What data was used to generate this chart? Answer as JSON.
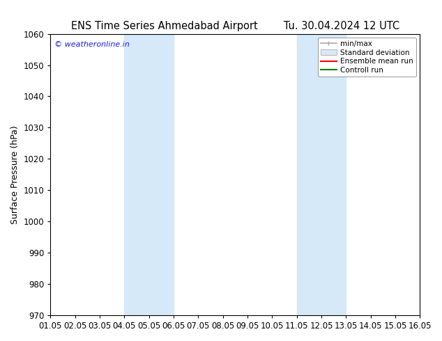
{
  "title_left": "ENS Time Series Ahmedabad Airport",
  "title_right": "Tu. 30.04.2024 12 UTC",
  "ylabel": "Surface Pressure (hPa)",
  "ylim": [
    970,
    1060
  ],
  "yticks": [
    970,
    980,
    990,
    1000,
    1010,
    1020,
    1030,
    1040,
    1050,
    1060
  ],
  "xtick_labels": [
    "01.05",
    "02.05",
    "03.05",
    "04.05",
    "05.05",
    "06.05",
    "07.05",
    "08.05",
    "09.05",
    "10.05",
    "11.05",
    "12.05",
    "13.05",
    "14.05",
    "15.05",
    "16.05"
  ],
  "shaded_regions": [
    {
      "xstart": 3,
      "xend": 5,
      "color": "#d6e9f8"
    },
    {
      "xstart": 10,
      "xend": 12,
      "color": "#d6e9f8"
    }
  ],
  "watermark": "© weatheronline.in",
  "watermark_color": "#1a1aff",
  "bg_color": "#ffffff",
  "plot_bg_color": "#ffffff",
  "spine_color": "#555555",
  "tick_color": "#000000",
  "legend_minmax_color": "#aaaaaa",
  "legend_std_color": "#ccddee",
  "legend_mean_color": "#ff0000",
  "legend_ctrl_color": "#008000",
  "title_fontsize": 10.5,
  "ylabel_fontsize": 9,
  "tick_fontsize": 8.5,
  "watermark_fontsize": 8,
  "legend_fontsize": 7.5
}
